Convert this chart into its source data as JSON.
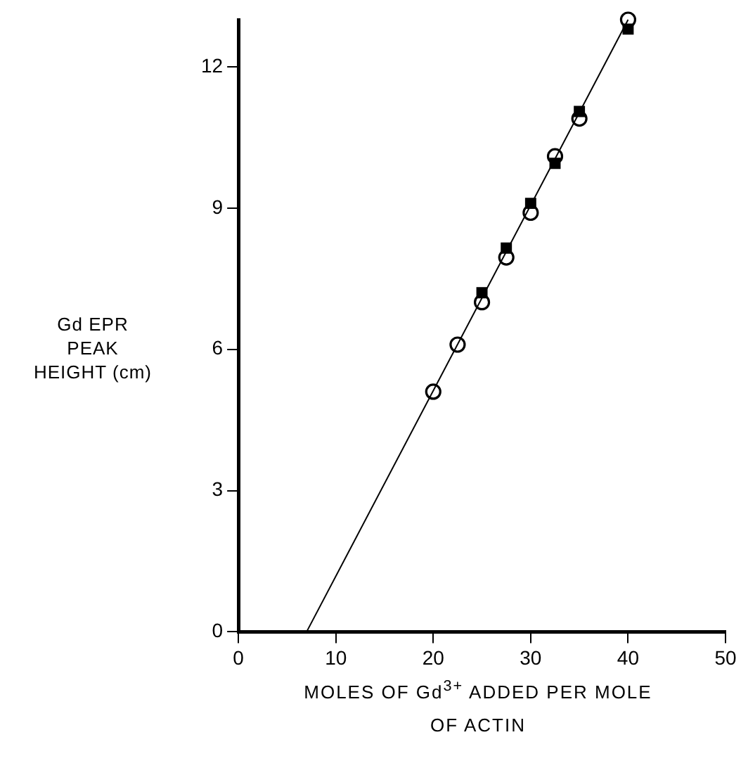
{
  "chart_data": {
    "type": "scatter",
    "xlabel": "MOLES OF Gd$^{3+}$ ADDED PER MOLE OF ACTIN",
    "ylabel": "Gd EPR PEAK HEIGHT (cm)",
    "xlim": [
      0,
      50
    ],
    "xticks": [
      0,
      10,
      20,
      30,
      40,
      50
    ],
    "ylim": [
      0,
      13
    ],
    "yticks": [
      0,
      3,
      6,
      9,
      12
    ],
    "grid": false,
    "legend": false,
    "series": [
      {
        "marker": "circle",
        "color": "#000000",
        "x": [
          20,
          22.5,
          25,
          27.5,
          30,
          32.5,
          35,
          40
        ],
        "values": [
          5.1,
          6.1,
          7.0,
          7.95,
          8.9,
          10.1,
          10.9,
          13.0
        ]
      },
      {
        "marker": "square",
        "color": "#000000",
        "x": [
          25,
          27.5,
          30,
          32.5,
          35,
          40
        ],
        "values": [
          7.2,
          8.15,
          9.1,
          9.95,
          11.05,
          12.8
        ]
      },
      {
        "type": "line",
        "marker": "none",
        "line_style": "solid",
        "color": "#000000",
        "x": [
          7,
          40
        ],
        "values": [
          0,
          13
        ]
      }
    ]
  }
}
